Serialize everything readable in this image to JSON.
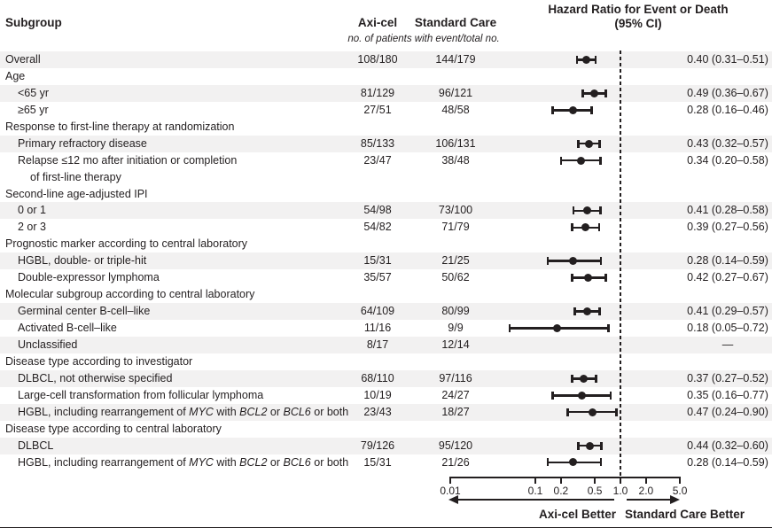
{
  "header": {
    "subgroup": "Subgroup",
    "axicel": "Axi-cel",
    "standard_care": "Standard Care",
    "patients_note": "no. of patients with event/total no.",
    "hr_title_line1": "Hazard Ratio for Event or Death",
    "hr_title_line2": "(95% CI)"
  },
  "footer": {
    "left_label": "Axi-cel Better",
    "right_label": "Standard Care Better"
  },
  "colors": {
    "ink": "#231f20",
    "stripe": "#f2f1f1",
    "background": "#ffffff"
  },
  "axis": {
    "scale": "log10",
    "ticks": [
      0.01,
      0.1,
      0.2,
      0.5,
      1.0,
      2.0,
      5.0
    ],
    "tick_labels": [
      "0.01",
      "0.1",
      "0.2",
      "0.5",
      "1.0",
      "2.0",
      "5.0"
    ],
    "reference_line": 1.0,
    "range": [
      0.01,
      5.0
    ]
  },
  "chart_data": {
    "type": "scatter",
    "subtype": "forest-plot",
    "title": "Hazard Ratio for Event or Death (95% CI)",
    "x_scale": "log10",
    "x_ticks": [
      0.01,
      0.1,
      0.2,
      0.5,
      1.0,
      2.0,
      5.0
    ],
    "reference_line": 1.0,
    "rows": [
      {
        "kind": "data",
        "label_parts": [
          {
            "t": "Overall"
          }
        ],
        "indent": 0,
        "shaded": true,
        "axi": "108/180",
        "soc": "144/179",
        "hr": "0.40 (0.31–0.51)",
        "est": 0.4,
        "lo": 0.31,
        "hi": 0.51
      },
      {
        "kind": "category",
        "label_parts": [
          {
            "t": "Age"
          }
        ],
        "indent": 0,
        "shaded": false
      },
      {
        "kind": "data",
        "label_parts": [
          {
            "t": "<65 yr"
          }
        ],
        "indent": 1,
        "shaded": true,
        "axi": "81/129",
        "soc": "96/121",
        "hr": "0.49 (0.36–0.67)",
        "est": 0.49,
        "lo": 0.36,
        "hi": 0.67
      },
      {
        "kind": "data",
        "label_parts": [
          {
            "t": "≥65 yr"
          }
        ],
        "indent": 1,
        "shaded": false,
        "axi": "27/51",
        "soc": "48/58",
        "hr": "0.28 (0.16–0.46)",
        "est": 0.28,
        "lo": 0.16,
        "hi": 0.46
      },
      {
        "kind": "category",
        "label_parts": [
          {
            "t": "Response to first-line therapy at randomization"
          }
        ],
        "indent": 0,
        "shaded": false
      },
      {
        "kind": "data",
        "label_parts": [
          {
            "t": "Primary refractory disease"
          }
        ],
        "indent": 1,
        "shaded": true,
        "axi": "85/133",
        "soc": "106/131",
        "hr": "0.43 (0.32–0.57)",
        "est": 0.43,
        "lo": 0.32,
        "hi": 0.57
      },
      {
        "kind": "data",
        "label_parts": [
          {
            "t": "Relapse ≤12 mo after initiation or completion"
          }
        ],
        "label2": "of first-line therapy",
        "indent": 1,
        "shaded": false,
        "axi": "23/47",
        "soc": "38/48",
        "hr": "0.34 (0.20–0.58)",
        "est": 0.34,
        "lo": 0.2,
        "hi": 0.58
      },
      {
        "kind": "category",
        "label_parts": [
          {
            "t": "Second-line age-adjusted IPI"
          }
        ],
        "indent": 0,
        "shaded": false
      },
      {
        "kind": "data",
        "label_parts": [
          {
            "t": "0 or 1"
          }
        ],
        "indent": 1,
        "shaded": true,
        "axi": "54/98",
        "soc": "73/100",
        "hr": "0.41 (0.28–0.58)",
        "est": 0.41,
        "lo": 0.28,
        "hi": 0.58
      },
      {
        "kind": "data",
        "label_parts": [
          {
            "t": "2 or 3"
          }
        ],
        "indent": 1,
        "shaded": false,
        "axi": "54/82",
        "soc": "71/79",
        "hr": "0.39 (0.27–0.56)",
        "est": 0.39,
        "lo": 0.27,
        "hi": 0.56
      },
      {
        "kind": "category",
        "label_parts": [
          {
            "t": "Prognostic marker according to central laboratory"
          }
        ],
        "indent": 0,
        "shaded": false
      },
      {
        "kind": "data",
        "label_parts": [
          {
            "t": "HGBL, double- or triple-hit"
          }
        ],
        "indent": 1,
        "shaded": true,
        "axi": "15/31",
        "soc": "21/25",
        "hr": "0.28 (0.14–0.59)",
        "est": 0.28,
        "lo": 0.14,
        "hi": 0.59
      },
      {
        "kind": "data",
        "label_parts": [
          {
            "t": "Double-expressor lymphoma"
          }
        ],
        "indent": 1,
        "shaded": false,
        "axi": "35/57",
        "soc": "50/62",
        "hr": "0.42 (0.27–0.67)",
        "est": 0.42,
        "lo": 0.27,
        "hi": 0.67
      },
      {
        "kind": "category",
        "label_parts": [
          {
            "t": "Molecular subgroup according to central laboratory"
          }
        ],
        "indent": 0,
        "shaded": false
      },
      {
        "kind": "data",
        "label_parts": [
          {
            "t": "Germinal center B-cell–like"
          }
        ],
        "indent": 1,
        "shaded": true,
        "axi": "64/109",
        "soc": "80/99",
        "hr": "0.41 (0.29–0.57)",
        "est": 0.41,
        "lo": 0.29,
        "hi": 0.57
      },
      {
        "kind": "data",
        "label_parts": [
          {
            "t": "Activated B-cell–like"
          }
        ],
        "indent": 1,
        "shaded": false,
        "axi": "11/16",
        "soc": "9/9",
        "hr": "0.18 (0.05–0.72)",
        "est": 0.18,
        "lo": 0.05,
        "hi": 0.72
      },
      {
        "kind": "data",
        "label_parts": [
          {
            "t": "Unclassified"
          }
        ],
        "indent": 1,
        "shaded": true,
        "axi": "8/17",
        "soc": "12/14",
        "hr": "—",
        "est": null,
        "lo": null,
        "hi": null
      },
      {
        "kind": "category",
        "label_parts": [
          {
            "t": "Disease type according to investigator"
          }
        ],
        "indent": 0,
        "shaded": false
      },
      {
        "kind": "data",
        "label_parts": [
          {
            "t": "DLBCL, not otherwise specified"
          }
        ],
        "indent": 1,
        "shaded": true,
        "axi": "68/110",
        "soc": "97/116",
        "hr": "0.37 (0.27–0.52)",
        "est": 0.37,
        "lo": 0.27,
        "hi": 0.52
      },
      {
        "kind": "data",
        "label_parts": [
          {
            "t": "Large-cell transformation from follicular lymphoma"
          }
        ],
        "indent": 1,
        "shaded": false,
        "axi": "10/19",
        "soc": "24/27",
        "hr": "0.35 (0.16–0.77)",
        "est": 0.35,
        "lo": 0.16,
        "hi": 0.77
      },
      {
        "kind": "data",
        "label_parts": [
          {
            "t": "HGBL, including rearrangement of "
          },
          {
            "t": "MYC",
            "i": true
          },
          {
            "t": " with "
          },
          {
            "t": "BCL2",
            "i": true
          },
          {
            "t": " or "
          },
          {
            "t": "BCL6",
            "i": true
          },
          {
            "t": " or both"
          }
        ],
        "indent": 1,
        "shaded": true,
        "axi": "23/43",
        "soc": "18/27",
        "hr": "0.47 (0.24–0.90)",
        "est": 0.47,
        "lo": 0.24,
        "hi": 0.9
      },
      {
        "kind": "category",
        "label_parts": [
          {
            "t": "Disease type according to central laboratory"
          }
        ],
        "indent": 0,
        "shaded": false
      },
      {
        "kind": "data",
        "label_parts": [
          {
            "t": "DLBCL"
          }
        ],
        "indent": 1,
        "shaded": true,
        "axi": "79/126",
        "soc": "95/120",
        "hr": "0.44 (0.32–0.60)",
        "est": 0.44,
        "lo": 0.32,
        "hi": 0.6
      },
      {
        "kind": "data",
        "label_parts": [
          {
            "t": "HGBL, including rearrangement of "
          },
          {
            "t": "MYC",
            "i": true
          },
          {
            "t": " with "
          },
          {
            "t": "BCL2",
            "i": true
          },
          {
            "t": " or "
          },
          {
            "t": "BCL6",
            "i": true
          },
          {
            "t": " or both"
          }
        ],
        "indent": 1,
        "shaded": false,
        "axi": "15/31",
        "soc": "21/26",
        "hr": "0.28 (0.14–0.59)",
        "est": 0.28,
        "lo": 0.14,
        "hi": 0.59
      }
    ]
  }
}
